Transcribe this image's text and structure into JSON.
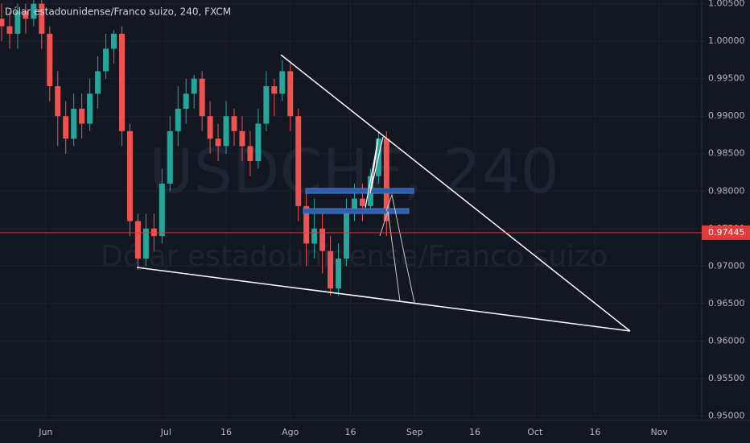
{
  "chart_data": {
    "type": "candlestick",
    "title": "Dólar estadounidense/Franco suizo, 240, FXCM",
    "watermark": "USDCHF, 240",
    "watermark_subtitle": "Dólar estadounidense/Franco suizo",
    "x": [
      -11,
      -9,
      -7,
      -5,
      -3,
      -1,
      1,
      3,
      5,
      7,
      9,
      11,
      13,
      15,
      17,
      19,
      21,
      23,
      25,
      27,
      29,
      31,
      33,
      35,
      37,
      39,
      41,
      43,
      45,
      47,
      49,
      51,
      53,
      55,
      57,
      59,
      61,
      63,
      65,
      67,
      69,
      71,
      73,
      75,
      77,
      79,
      81,
      83,
      85
    ],
    "open": [
      1.003,
      1.002,
      1.001,
      1.004,
      1.003,
      1.005,
      1.001,
      0.994,
      0.99,
      0.987,
      0.991,
      0.989,
      0.993,
      0.996,
      0.999,
      1.001,
      0.988,
      0.976,
      0.971,
      0.975,
      0.974,
      0.981,
      0.988,
      0.991,
      0.993,
      0.995,
      0.99,
      0.987,
      0.986,
      0.99,
      0.988,
      0.986,
      0.984,
      0.989,
      0.994,
      0.993,
      0.996,
      0.99,
      0.978,
      0.973,
      0.975,
      0.972,
      0.967,
      0.971,
      0.977,
      0.979,
      0.978,
      0.982,
      0.987
    ],
    "high": [
      1.005,
      1.004,
      1.005,
      1.005,
      1.0055,
      1.0055,
      1.002,
      0.996,
      0.992,
      0.993,
      0.993,
      0.995,
      0.998,
      1.001,
      1.0015,
      1.002,
      0.989,
      0.977,
      0.977,
      0.977,
      0.983,
      0.99,
      0.994,
      0.995,
      0.9955,
      0.996,
      0.992,
      0.989,
      0.992,
      0.991,
      0.99,
      0.988,
      0.991,
      0.996,
      0.995,
      0.9975,
      0.997,
      0.991,
      0.98,
      0.979,
      0.977,
      0.974,
      0.973,
      0.979,
      0.981,
      0.981,
      0.983,
      0.988,
      0.988
    ],
    "low": [
      1.0,
      0.999,
      0.999,
      1.001,
      1.002,
      0.999,
      0.992,
      0.986,
      0.985,
      0.986,
      0.987,
      0.988,
      0.991,
      0.995,
      0.997,
      0.986,
      0.974,
      0.9695,
      0.97,
      0.972,
      0.973,
      0.98,
      0.986,
      0.989,
      0.991,
      0.988,
      0.985,
      0.984,
      0.985,
      0.986,
      0.984,
      0.982,
      0.983,
      0.988,
      0.99,
      0.992,
      0.988,
      0.976,
      0.97,
      0.971,
      0.969,
      0.966,
      0.966,
      0.97,
      0.976,
      0.976,
      0.977,
      0.981,
      0.974
    ],
    "close": [
      1.002,
      1.001,
      1.004,
      1.003,
      1.005,
      1.001,
      0.994,
      0.99,
      0.987,
      0.991,
      0.989,
      0.993,
      0.996,
      0.999,
      1.001,
      0.988,
      0.976,
      0.971,
      0.975,
      0.974,
      0.981,
      0.988,
      0.991,
      0.993,
      0.995,
      0.99,
      0.987,
      0.986,
      0.99,
      0.988,
      0.986,
      0.984,
      0.989,
      0.994,
      0.993,
      0.996,
      0.99,
      0.978,
      0.973,
      0.975,
      0.972,
      0.967,
      0.971,
      0.977,
      0.979,
      0.978,
      0.982,
      0.987,
      0.976
    ],
    "up_color": "#26a69a",
    "down_color": "#ef5350",
    "last_price": 0.97445,
    "last_price_color": "#e23b3b",
    "xlim": [
      -11.4,
      163.6
    ],
    "xticks": [
      {
        "value": 0,
        "label": "Jun"
      },
      {
        "value": 30,
        "label": "Jul"
      },
      {
        "value": 45,
        "label": "16"
      },
      {
        "value": 61,
        "label": "Ago"
      },
      {
        "value": 76,
        "label": "16"
      },
      {
        "value": 92,
        "label": "Sep"
      },
      {
        "value": 107,
        "label": "16"
      },
      {
        "value": 122,
        "label": "Oct"
      },
      {
        "value": 137,
        "label": "16"
      },
      {
        "value": 153,
        "label": "Nov"
      }
    ],
    "ylim": [
      0.9494,
      1.0055
    ],
    "yticks": [
      {
        "value": 0.95,
        "label": "0.95000"
      },
      {
        "value": 0.955,
        "label": "0.95500"
      },
      {
        "value": 0.96,
        "label": "0.96000"
      },
      {
        "value": 0.965,
        "label": "0.96500"
      },
      {
        "value": 0.97,
        "label": "0.97000"
      },
      {
        "value": 0.975,
        "label": "0.97500"
      },
      {
        "value": 0.98,
        "label": "0.98000"
      },
      {
        "value": 0.985,
        "label": "0.98500"
      },
      {
        "value": 0.99,
        "label": "0.99000"
      },
      {
        "value": 0.995,
        "label": "0.99500"
      },
      {
        "value": 1.0,
        "label": "1.00000"
      },
      {
        "value": 1.005,
        "label": "1.00500"
      }
    ],
    "grid": true
  }
}
